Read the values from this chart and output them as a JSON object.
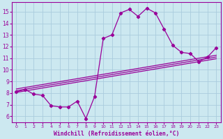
{
  "x": [
    0,
    1,
    2,
    3,
    4,
    5,
    6,
    7,
    8,
    9,
    10,
    11,
    12,
    13,
    14,
    15,
    16,
    17,
    18,
    19,
    20,
    21,
    22,
    23
  ],
  "y_main": [
    8.1,
    8.3,
    7.9,
    7.8,
    6.9,
    6.8,
    6.8,
    7.3,
    5.8,
    7.7,
    12.7,
    13.0,
    14.9,
    15.2,
    14.6,
    15.3,
    14.9,
    13.5,
    12.1,
    11.5,
    11.4,
    10.7,
    11.1,
    11.9
  ],
  "line_color": "#990099",
  "bg_color": "#cce8f0",
  "grid_color": "#aaccdd",
  "ylabel_values": [
    6,
    7,
    8,
    9,
    10,
    11,
    12,
    13,
    14,
    15
  ],
  "xlabel_values": [
    0,
    1,
    2,
    3,
    4,
    5,
    6,
    7,
    8,
    9,
    10,
    11,
    12,
    13,
    14,
    15,
    16,
    17,
    18,
    19,
    20,
    21,
    22,
    23
  ],
  "xlabel": "Windchill (Refroidissement éolien,°C)",
  "ylim": [
    5.5,
    15.8
  ],
  "xlim": [
    -0.5,
    23.5
  ],
  "trend_x": [
    0,
    23
  ],
  "trend_lines": [
    [
      8.05,
      10.95
    ],
    [
      8.2,
      11.1
    ],
    [
      8.35,
      11.25
    ]
  ]
}
